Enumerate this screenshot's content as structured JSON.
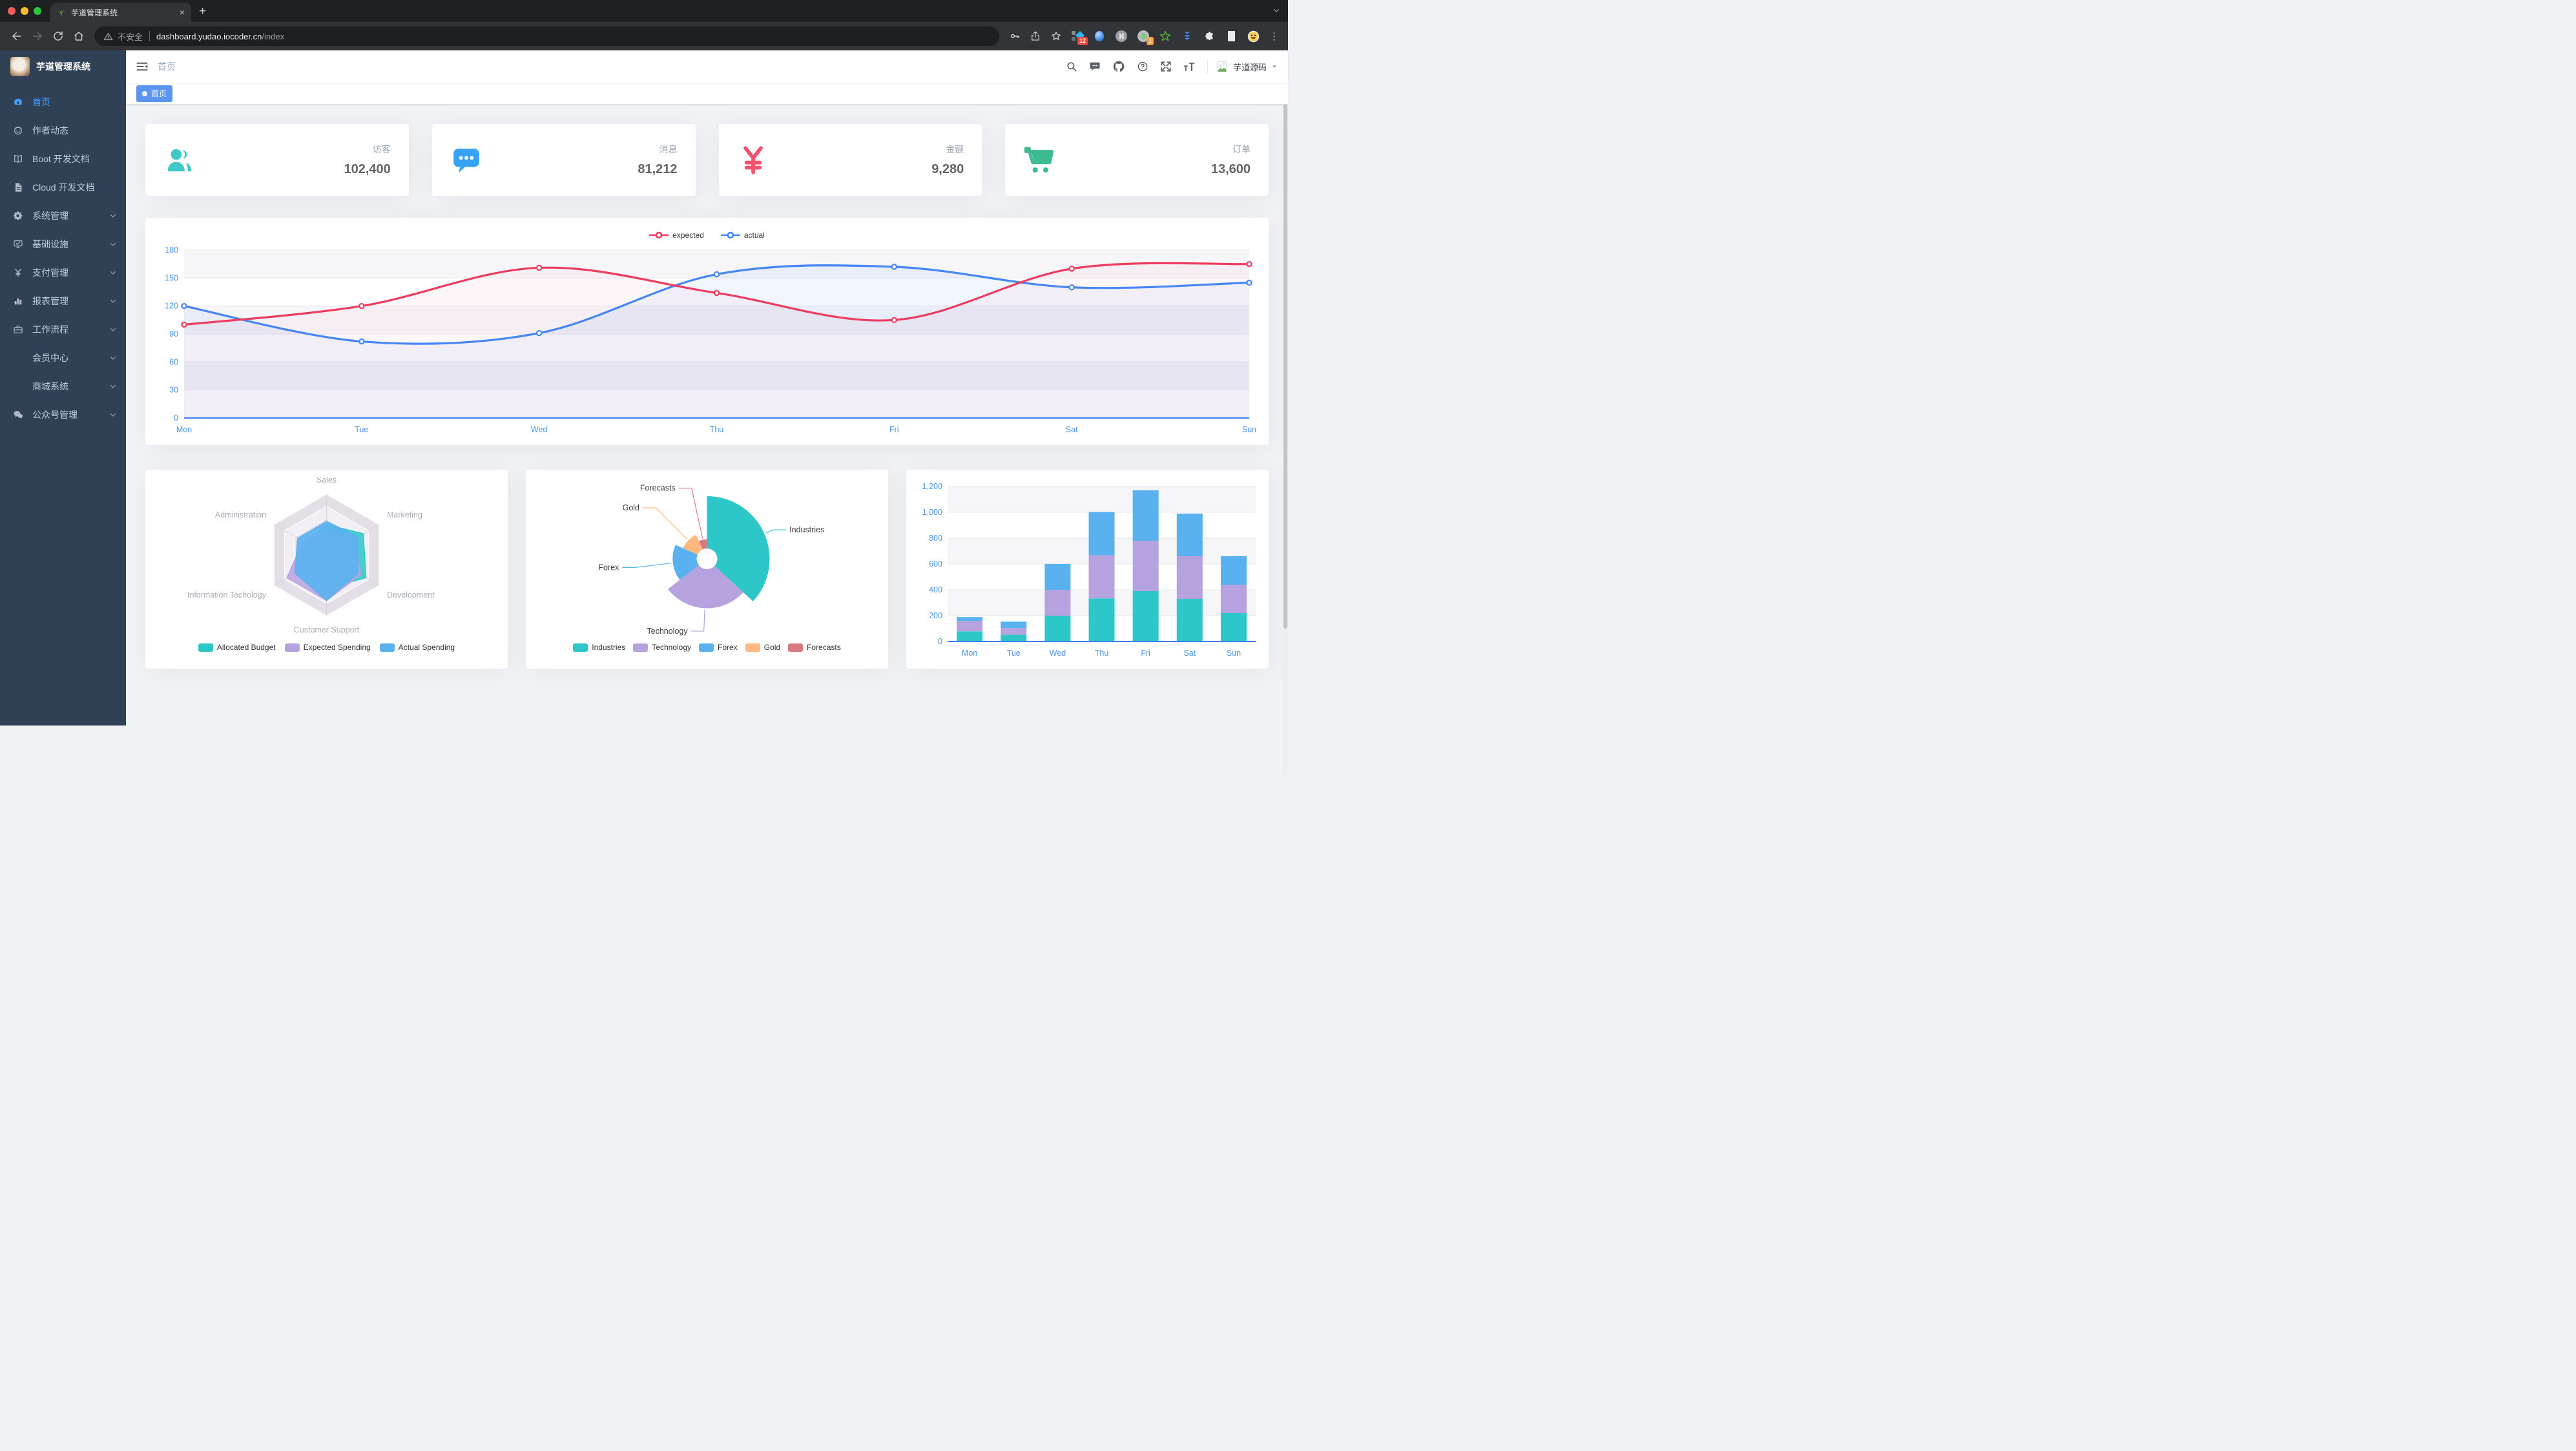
{
  "browser": {
    "tab_title": "芋道管理系统",
    "security_text": "不安全",
    "url_host": "dashboard.yudao.iocoder.cn",
    "url_path": "/index",
    "ext_badge_tm": "12",
    "ext_badge_session": "1"
  },
  "sidebar": {
    "title": "芋道管理系统",
    "items": [
      {
        "icon": "dashboard-icon",
        "label": "首页",
        "active": true,
        "chevron": false
      },
      {
        "icon": "author-icon",
        "label": "作者动态",
        "active": false,
        "chevron": false
      },
      {
        "icon": "book-icon",
        "label": "Boot 开发文档",
        "active": false,
        "chevron": false
      },
      {
        "icon": "doc-icon",
        "label": "Cloud 开发文档",
        "active": false,
        "chevron": false
      },
      {
        "icon": "gear-icon",
        "label": "系统管理",
        "active": false,
        "chevron": true
      },
      {
        "icon": "infra-icon",
        "label": "基础设施",
        "active": false,
        "chevron": true
      },
      {
        "icon": "yen-icon",
        "label": "支付管理",
        "active": false,
        "chevron": true
      },
      {
        "icon": "report-icon",
        "label": "报表管理",
        "active": false,
        "chevron": true
      },
      {
        "icon": "briefcase-icon",
        "label": "工作流程",
        "active": false,
        "chevron": true
      },
      {
        "icon": null,
        "label": "会员中心",
        "active": false,
        "chevron": true
      },
      {
        "icon": null,
        "label": "商城系统",
        "active": false,
        "chevron": true
      },
      {
        "icon": "wechat-icon",
        "label": "公众号管理",
        "active": false,
        "chevron": true
      }
    ]
  },
  "navbar": {
    "breadcrumb": "首页",
    "username": "芋道源码"
  },
  "tags": {
    "items": [
      {
        "label": "首页",
        "active": true
      }
    ]
  },
  "stats": [
    {
      "label": "访客",
      "value": "102,400",
      "icon": "people-icon",
      "color": "#40c9c6"
    },
    {
      "label": "消息",
      "value": "81,212",
      "icon": "message-icon",
      "color": "#36a3f7"
    },
    {
      "label": "金额",
      "value": "9,280",
      "icon": "money-icon",
      "color": "#f4516c"
    },
    {
      "label": "订单",
      "value": "13,600",
      "icon": "cart-icon",
      "color": "#3cba92"
    }
  ],
  "chart_data": [
    {
      "type": "line",
      "x": [
        "Mon",
        "Tue",
        "Wed",
        "Thu",
        "Fri",
        "Sat",
        "Sun"
      ],
      "series": [
        {
          "name": "expected",
          "color": "#ec3d60",
          "values": [
            100,
            120,
            161,
            134,
            105,
            160,
            165
          ]
        },
        {
          "name": "actual",
          "color": "#4585f4",
          "values": [
            120,
            82,
            91,
            154,
            162,
            140,
            145
          ]
        }
      ],
      "ylim": [
        0,
        180
      ],
      "yticks": [
        0,
        30,
        60,
        90,
        120,
        150,
        180
      ],
      "legend_position": "top",
      "grid": true
    },
    {
      "type": "radar",
      "indicators": [
        {
          "name": "Sales",
          "max": 10000
        },
        {
          "name": "Administration",
          "max": 20000
        },
        {
          "name": "Information Techology",
          "max": 20000
        },
        {
          "name": "Customer Support",
          "max": 20000
        },
        {
          "name": "Development",
          "max": 20000
        },
        {
          "name": "Marketing",
          "max": 20000
        }
      ],
      "series": [
        {
          "name": "Allocated Budget",
          "color": "#2ec7c9",
          "values": [
            5000,
            7000,
            12000,
            11000,
            15000,
            14000
          ]
        },
        {
          "name": "Expected Spending",
          "color": "#b6a2de",
          "values": [
            4000,
            9000,
            15000,
            15000,
            13000,
            11000
          ]
        },
        {
          "name": "Actual Spending",
          "color": "#5ab1ef",
          "values": [
            5500,
            11000,
            12000,
            15000,
            12000,
            12000
          ]
        }
      ],
      "legend_position": "bottom"
    },
    {
      "type": "pie",
      "rose": true,
      "items": [
        {
          "name": "Industries",
          "value": 320,
          "color": "#2ec7c9"
        },
        {
          "name": "Technology",
          "value": 240,
          "color": "#b6a2de"
        },
        {
          "name": "Forex",
          "value": 149,
          "color": "#5ab1ef"
        },
        {
          "name": "Gold",
          "value": 100,
          "color": "#ffb980"
        },
        {
          "name": "Forecasts",
          "value": 59,
          "color": "#d87a80"
        }
      ],
      "legend_position": "bottom"
    },
    {
      "type": "bar",
      "stacked": true,
      "categories": [
        "Mon",
        "Tue",
        "Wed",
        "Thu",
        "Fri",
        "Sat",
        "Sun"
      ],
      "series": [
        {
          "color": "#2ec7c9",
          "values": [
            79,
            52,
            200,
            334,
            390,
            330,
            220
          ]
        },
        {
          "color": "#b6a2de",
          "values": [
            80,
            52,
            200,
            334,
            390,
            330,
            220
          ]
        },
        {
          "color": "#5ab1ef",
          "values": [
            30,
            50,
            200,
            334,
            390,
            330,
            220
          ]
        }
      ],
      "ylim": [
        0,
        1200
      ],
      "yticks": [
        0,
        200,
        400,
        600,
        800,
        1000,
        1200
      ]
    }
  ]
}
